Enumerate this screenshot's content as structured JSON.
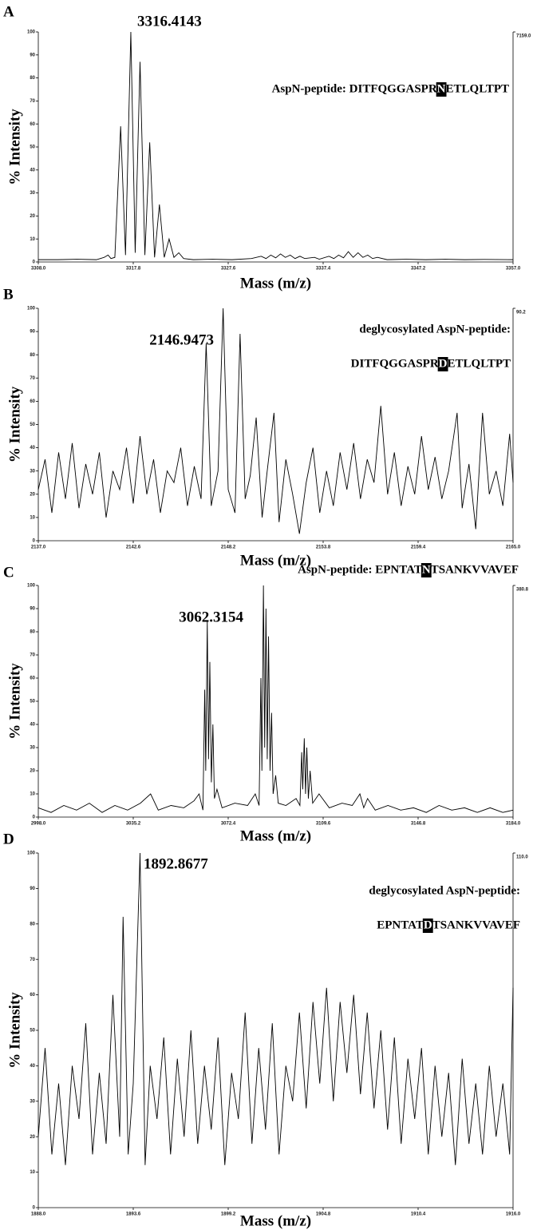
{
  "chart_data": [
    {
      "type": "line",
      "panel": "A",
      "ylabel": "% Intensity",
      "xlabel": "Mass (m/z)",
      "color": "#000000",
      "peak_label": 3316.4143,
      "annotation": [
        [
          {
            "text": "AspN-peptide: DITFQGGASPR"
          },
          {
            "text": "N",
            "highlight": true
          },
          {
            "text": "ETLQLTPT"
          }
        ]
      ],
      "xlim": [
        3308,
        3357
      ],
      "ylim": [
        0,
        100
      ],
      "y2lim": [
        0,
        7159
      ],
      "y2ticks": [
        {
          "value": 7159,
          "label": "7159.0"
        }
      ],
      "xticks": [
        {
          "value": 3308,
          "label": "3308.0"
        },
        3317.8,
        3327.6,
        3337.4,
        3347.2,
        {
          "value": 3357,
          "label": "3357.0"
        }
      ],
      "yticks": [
        0,
        10,
        20,
        30,
        40,
        50,
        60,
        70,
        80,
        90,
        100
      ],
      "x": [
        3308,
        3310,
        3312,
        3314,
        3314.8,
        3315.2,
        3315.5,
        3315.9,
        3316.5,
        3317,
        3317.55,
        3318,
        3318.5,
        3319,
        3319.5,
        3320,
        3320.5,
        3321,
        3321.5,
        3322,
        3322.5,
        3323,
        3324,
        3326,
        3328,
        3330,
        3331,
        3331.5,
        3332,
        3332.5,
        3333,
        3333.5,
        3334,
        3334.5,
        3335,
        3335.5,
        3336.5,
        3337,
        3338,
        3338.5,
        3339,
        3339.5,
        3340,
        3340.5,
        3341,
        3341.5,
        3342,
        3342.5,
        3343,
        3344,
        3346,
        3348,
        3350,
        3352,
        3354,
        3357
      ],
      "values": [
        1,
        1,
        1.2,
        1,
        2,
        3,
        1.5,
        2,
        59,
        3,
        100,
        4,
        87,
        3,
        52,
        2,
        25,
        2,
        10,
        2,
        4,
        1.5,
        1,
        1.2,
        1,
        1.5,
        2.5,
        1.5,
        3,
        1.8,
        3.5,
        2,
        3,
        1.5,
        2.5,
        1.5,
        2,
        1.2,
        2.5,
        1.5,
        3,
        1.8,
        4.5,
        2,
        4,
        2,
        3,
        1.5,
        2,
        1,
        1.2,
        1,
        1.2,
        1,
        1.1,
        1
      ]
    },
    {
      "type": "line",
      "panel": "B",
      "ylabel": "% Intensity",
      "xlabel": "Mass (m/z)",
      "color": "#000000",
      "peak_label": 2146.9473,
      "annotation": [
        [
          {
            "text": "deglycosylated AspN-peptide:"
          }
        ],
        [
          {
            "text": "DITFQGGASPR"
          },
          {
            "text": "D",
            "highlight": true
          },
          {
            "text": "ETLQLTPT"
          }
        ]
      ],
      "xlim": [
        2137,
        2165
      ],
      "ylim": [
        0,
        100
      ],
      "y2lim": [
        0,
        90.2
      ],
      "y2ticks": [
        90.2
      ],
      "xticks": [
        {
          "value": 2137,
          "label": "2137.0"
        },
        2142.6,
        2148.2,
        2153.8,
        2159.4,
        {
          "value": 2165,
          "label": "2165.0"
        }
      ],
      "yticks": [
        0,
        10,
        20,
        30,
        40,
        50,
        60,
        70,
        80,
        90,
        100
      ],
      "x": [
        2137,
        2137.4,
        2137.8,
        2138.2,
        2138.6,
        2139,
        2139.4,
        2139.8,
        2140.2,
        2140.6,
        2141,
        2141.4,
        2141.8,
        2142.2,
        2142.6,
        2143,
        2143.4,
        2143.8,
        2144.2,
        2144.6,
        2145,
        2145.4,
        2145.8,
        2146.2,
        2146.6,
        2146.9,
        2147.2,
        2147.6,
        2147.9,
        2148.2,
        2148.6,
        2148.9,
        2149.2,
        2149.5,
        2149.85,
        2150.2,
        2150.5,
        2150.9,
        2151.2,
        2151.6,
        2152,
        2152.4,
        2152.8,
        2153.2,
        2153.6,
        2154,
        2154.4,
        2154.8,
        2155.2,
        2155.6,
        2156,
        2156.4,
        2156.8,
        2157.2,
        2157.6,
        2158,
        2158.4,
        2158.8,
        2159.2,
        2159.6,
        2160,
        2160.4,
        2160.8,
        2161.2,
        2161.7,
        2162,
        2162.4,
        2162.8,
        2163.2,
        2163.6,
        2164,
        2164.4,
        2164.8,
        2165
      ],
      "values": [
        22,
        35,
        12,
        38,
        18,
        42,
        14,
        33,
        20,
        38,
        10,
        30,
        22,
        40,
        16,
        45,
        20,
        35,
        12,
        30,
        25,
        40,
        15,
        32,
        18,
        85,
        15,
        30,
        100,
        22,
        12,
        89,
        18,
        28,
        53,
        10,
        30,
        55,
        8,
        35,
        20,
        3,
        25,
        40,
        12,
        30,
        15,
        38,
        22,
        42,
        18,
        35,
        25,
        58,
        20,
        38,
        15,
        32,
        20,
        45,
        22,
        36,
        18,
        30,
        55,
        14,
        33,
        5,
        55,
        20,
        30,
        15,
        46,
        25
      ]
    },
    {
      "type": "line",
      "panel": "C",
      "ylabel": "% Intensity",
      "xlabel": "Mass (m/z)",
      "color": "#000000",
      "peak_label": 3062.3154,
      "annotation": [
        [
          {
            "text": "AspN-peptide: EPNTAT"
          },
          {
            "text": "N",
            "highlight": true
          },
          {
            "text": "TSANKVVAVEF"
          }
        ]
      ],
      "xlim": [
        2998,
        3184
      ],
      "ylim": [
        0,
        100
      ],
      "y2lim": [
        0,
        380.8
      ],
      "y2ticks": [
        380.8
      ],
      "xticks": [
        {
          "value": 2998,
          "label": "2998.0"
        },
        3035.2,
        3072.4,
        3109.6,
        3146.8,
        {
          "value": 3184,
          "label": "3184.0"
        }
      ],
      "yticks": [
        0,
        10,
        20,
        30,
        40,
        50,
        60,
        70,
        80,
        90,
        100
      ],
      "x": [
        2998,
        3003,
        3008,
        3013,
        3018,
        3023,
        3028,
        3033,
        3038,
        3042,
        3045,
        3050,
        3055,
        3059,
        3061,
        3062.5,
        3063.2,
        3063.6,
        3064.2,
        3064.7,
        3065.2,
        3065.8,
        3066.4,
        3067,
        3068,
        3070,
        3075,
        3080,
        3083,
        3084.5,
        3085.2,
        3085.6,
        3086.2,
        3086.7,
        3087.2,
        3087.7,
        3088.2,
        3088.8,
        3089.4,
        3090,
        3091,
        3092,
        3095,
        3099,
        3100.5,
        3101.2,
        3101.6,
        3102.2,
        3102.7,
        3103.2,
        3103.8,
        3104.5,
        3105.5,
        3108,
        3112,
        3117,
        3121,
        3124,
        3125.5,
        3127,
        3130,
        3135,
        3140,
        3145,
        3150,
        3155,
        3160,
        3165,
        3170,
        3175,
        3180,
        3184
      ],
      "values": [
        4,
        2,
        5,
        3,
        6,
        2,
        5,
        3,
        6,
        10,
        3,
        5,
        4,
        7,
        10,
        3,
        55,
        20,
        85,
        25,
        67,
        15,
        40,
        8,
        12,
        4,
        6,
        5,
        10,
        5,
        60,
        20,
        100,
        30,
        90,
        25,
        78,
        20,
        45,
        10,
        18,
        6,
        5,
        8,
        5,
        28,
        12,
        34,
        10,
        30,
        8,
        20,
        6,
        10,
        4,
        6,
        5,
        10,
        4,
        8,
        3,
        5,
        3,
        4,
        2,
        5,
        3,
        4,
        2,
        4,
        2,
        3
      ]
    },
    {
      "type": "line",
      "panel": "D",
      "ylabel": "% Intensity",
      "xlabel": "Mass (m/z)",
      "color": "#000000",
      "peak_label": 1892.8677,
      "annotation": [
        [
          {
            "text": "deglycosylated AspN-peptide:"
          }
        ],
        [
          {
            "text": "EPNTAT"
          },
          {
            "text": "D",
            "highlight": true
          },
          {
            "text": "TSANKVVAVEF"
          }
        ]
      ],
      "xlim": [
        1888,
        1916
      ],
      "ylim": [
        0,
        100
      ],
      "y2lim": [
        0,
        110
      ],
      "y2ticks": [
        {
          "value": 110,
          "label": "110.0"
        }
      ],
      "xticks": [
        {
          "value": 1888,
          "label": "1888.0"
        },
        1893.6,
        1899.2,
        1904.8,
        1910.4,
        {
          "value": 1916,
          "label": "1916.0"
        }
      ],
      "yticks": [
        0,
        10,
        20,
        30,
        40,
        50,
        60,
        70,
        80,
        90,
        100
      ],
      "x": [
        1888,
        1888.4,
        1888.8,
        1889.2,
        1889.6,
        1890,
        1890.4,
        1890.8,
        1891.2,
        1891.6,
        1892,
        1892.4,
        1892.8,
        1893,
        1893.3,
        1893.6,
        1894,
        1894.3,
        1894.6,
        1895,
        1895.4,
        1895.8,
        1896.2,
        1896.6,
        1897,
        1897.4,
        1897.8,
        1898.2,
        1898.6,
        1899,
        1899.4,
        1899.8,
        1900.2,
        1900.6,
        1901,
        1901.4,
        1901.8,
        1902.2,
        1902.6,
        1903,
        1903.4,
        1903.8,
        1904.2,
        1904.6,
        1905,
        1905.4,
        1905.8,
        1906.2,
        1906.6,
        1907,
        1907.4,
        1907.8,
        1908.2,
        1908.6,
        1909,
        1909.4,
        1909.8,
        1910.2,
        1910.6,
        1911,
        1911.4,
        1911.8,
        1912.2,
        1912.6,
        1913,
        1913.4,
        1913.8,
        1914.2,
        1914.6,
        1915,
        1915.4,
        1915.8,
        1916
      ],
      "values": [
        20,
        45,
        15,
        35,
        12,
        40,
        25,
        52,
        15,
        38,
        18,
        60,
        20,
        82,
        15,
        35,
        100,
        12,
        40,
        25,
        48,
        15,
        42,
        20,
        50,
        18,
        40,
        22,
        48,
        12,
        38,
        25,
        55,
        18,
        45,
        22,
        52,
        15,
        40,
        30,
        55,
        28,
        58,
        35,
        62,
        30,
        58,
        38,
        60,
        32,
        55,
        28,
        50,
        22,
        48,
        18,
        42,
        25,
        45,
        15,
        40,
        20,
        38,
        12,
        42,
        18,
        35,
        15,
        40,
        20,
        35,
        15,
        62
      ]
    }
  ]
}
